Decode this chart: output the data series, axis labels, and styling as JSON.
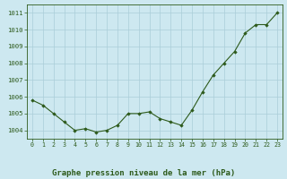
{
  "x": [
    0,
    1,
    2,
    3,
    4,
    5,
    6,
    7,
    8,
    9,
    10,
    11,
    12,
    13,
    14,
    15,
    16,
    17,
    18,
    19,
    20,
    21,
    22,
    23
  ],
  "y": [
    1005.8,
    1005.5,
    1005.0,
    1004.5,
    1004.0,
    1004.1,
    1003.9,
    1004.0,
    1004.3,
    1005.0,
    1005.0,
    1005.1,
    1004.7,
    1004.5,
    1004.3,
    1005.2,
    1006.3,
    1007.3,
    1008.0,
    1008.7,
    1009.8,
    1010.3,
    1010.3,
    1011.0
  ],
  "line_color": "#2d5a1b",
  "marker_color": "#2d5a1b",
  "bg_color": "#cde8f0",
  "grid_color": "#aacdd8",
  "axis_color": "#2d5a1b",
  "title": "Graphe pression niveau de la mer (hPa)",
  "title_color": "#2d5a1b",
  "ylim_min": 1003.5,
  "ylim_max": 1011.5,
  "yticks": [
    1004,
    1005,
    1006,
    1007,
    1008,
    1009,
    1010,
    1011
  ],
  "title_fontsize": 6.5
}
